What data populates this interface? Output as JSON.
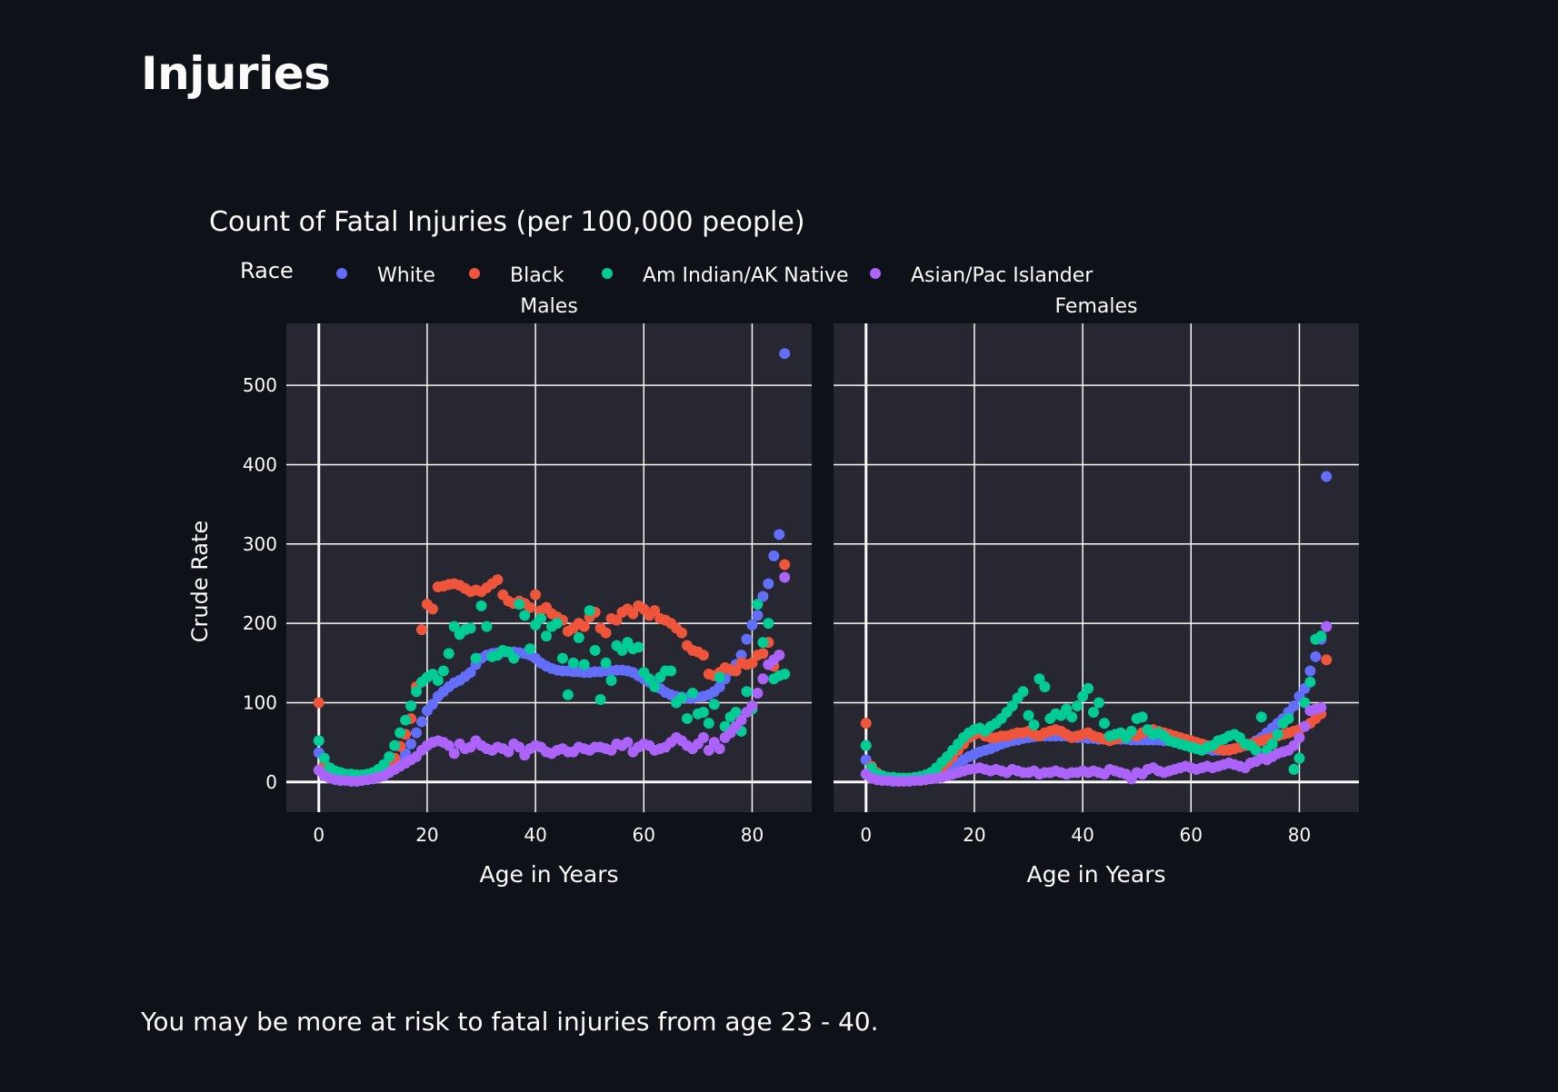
{
  "page": {
    "title": "Injuries",
    "caption": "You may be more at risk to fatal injuries from age 23 - 40."
  },
  "colors": {
    "background": "#0e1117",
    "plot_bg": "#262730",
    "grid": "#fafafa",
    "text": "#fafafa"
  },
  "chart_data": {
    "type": "scatter",
    "title": "Count of Fatal Injuries (per 100,000 people)",
    "legend_title": "Race",
    "legend_position": "top",
    "ylabel": "Crude Rate",
    "xlabel": "Age in Years",
    "xlim": [
      -6,
      91
    ],
    "ylim": [
      -38,
      578
    ],
    "xticks": [
      0,
      20,
      40,
      60,
      80
    ],
    "yticks": [
      0,
      100,
      200,
      300,
      400,
      500
    ],
    "grid": true,
    "series_info": [
      {
        "name": "White",
        "color": "#636efa"
      },
      {
        "name": "Black",
        "color": "#ef553b"
      },
      {
        "name": "Am Indian/AK Native",
        "color": "#00cc96"
      },
      {
        "name": "Asian/Pac Islander",
        "color": "#ab63fa"
      }
    ],
    "panels": [
      {
        "title": "Males",
        "series": [
          {
            "name": "White",
            "values": [
              37,
              12,
              8,
              6,
              5,
              4,
              4,
              3,
              3,
              4,
              5,
              6,
              8,
              12,
              18,
              26,
              36,
              48,
              62,
              76,
              90,
              98,
              108,
              114,
              120,
              125,
              128,
              133,
              138,
              148,
              156,
              160,
              162,
              163,
              164,
              164,
              164,
              163,
              162,
              160,
              156,
              150,
              146,
              143,
              141,
              140,
              140,
              139,
              139,
              138,
              138,
              139,
              139,
              140,
              140,
              141,
              141,
              140,
              138,
              134,
              130,
              126,
              122,
              118,
              113,
              110,
              108,
              107,
              106,
              106,
              107,
              108,
              110,
              114,
              120,
              130,
              140,
              148,
              160,
              180,
              198,
              210,
              234,
              250,
              285,
              312,
              540
            ]
          },
          {
            "name": "Black",
            "values": [
              100,
              22,
              14,
              12,
              10,
              9,
              8,
              7,
              7,
              8,
              9,
              11,
              14,
              20,
              30,
              45,
              60,
              80,
              120,
              192,
              224,
              218,
              246,
              247,
              249,
              250,
              248,
              244,
              240,
              242,
              240,
              245,
              250,
              255,
              236,
              228,
              225,
              228,
              225,
              220,
              236,
              216,
              220,
              212,
              208,
              204,
              190,
              194,
              200,
              196,
              208,
              214,
              194,
              188,
              206,
              204,
              214,
              218,
              212,
              222,
              218,
              210,
              216,
              206,
              204,
              200,
              194,
              188,
              172,
              166,
              164,
              160,
              136,
              134,
              138,
              144,
              142,
              140,
              150,
              148,
              150,
              160,
              162,
              176,
              146,
              160,
              274
            ]
          },
          {
            "name": "Am Indian/AK Native",
            "values": [
              52,
              30,
              18,
              14,
              12,
              10,
              10,
              9,
              9,
              10,
              12,
              16,
              22,
              32,
              46,
              62,
              78,
              96,
              114,
              126,
              132,
              136,
              128,
              140,
              162,
              196,
              186,
              192,
              194,
              156,
              222,
              196,
              158,
              160,
              166,
              164,
              156,
              224,
              210,
              168,
              198,
              206,
              184,
              196,
              200,
              156,
              110,
              150,
              182,
              148,
              216,
              166,
              104,
              150,
              128,
              172,
              166,
              176,
              168,
              170,
              138,
              130,
              120,
              132,
              140,
              140,
              100,
              106,
              80,
              112,
              86,
              88,
              74,
              98,
              132,
              70,
              82,
              88,
              64,
              114,
              92,
              224,
              176,
              200,
              130,
              134,
              136
            ]
          },
          {
            "name": "Asian/Pac Islander",
            "values": [
              15,
              8,
              5,
              3,
              2,
              2,
              1,
              1,
              2,
              3,
              4,
              6,
              8,
              12,
              16,
              20,
              24,
              28,
              32,
              40,
              46,
              50,
              52,
              50,
              46,
              36,
              48,
              42,
              44,
              52,
              46,
              42,
              40,
              44,
              42,
              38,
              48,
              44,
              34,
              42,
              46,
              44,
              38,
              36,
              40,
              42,
              38,
              38,
              44,
              42,
              40,
              44,
              44,
              42,
              40,
              48,
              46,
              50,
              38,
              44,
              48,
              46,
              40,
              42,
              44,
              50,
              56,
              52,
              46,
              42,
              48,
              56,
              40,
              50,
              42,
              56,
              62,
              70,
              78,
              88,
              96,
              112,
              130,
              148,
              154,
              160,
              258
            ]
          }
        ]
      },
      {
        "title": "Females",
        "series": [
          {
            "name": "White",
            "values": [
              28,
              10,
              6,
              4,
              3,
              3,
              2,
              2,
              2,
              3,
              3,
              4,
              6,
              9,
              13,
              17,
              20,
              24,
              28,
              32,
              35,
              38,
              40,
              42,
              45,
              48,
              50,
              52,
              53,
              55,
              56,
              57,
              58,
              58,
              58,
              58,
              58,
              58,
              57,
              56,
              56,
              55,
              55,
              54,
              54,
              54,
              54,
              54,
              54,
              53,
              53,
              53,
              53,
              53,
              53,
              52,
              52,
              51,
              50,
              49,
              48,
              46,
              44,
              42,
              40,
              40,
              40,
              41,
              42,
              44,
              46,
              48,
              52,
              56,
              62,
              68,
              74,
              80,
              88,
              96,
              108,
              118,
              140,
              158,
              180,
              385
            ]
          },
          {
            "name": "Black",
            "values": [
              74,
              20,
              12,
              8,
              6,
              5,
              4,
              4,
              4,
              4,
              5,
              6,
              8,
              12,
              18,
              25,
              32,
              40,
              48,
              56,
              60,
              62,
              58,
              56,
              56,
              58,
              58,
              60,
              62,
              62,
              64,
              60,
              58,
              62,
              64,
              66,
              64,
              60,
              56,
              58,
              60,
              62,
              58,
              56,
              54,
              52,
              54,
              56,
              58,
              60,
              58,
              62,
              64,
              66,
              64,
              62,
              60,
              58,
              56,
              54,
              52,
              50,
              48,
              46,
              44,
              42,
              40,
              40,
              42,
              44,
              46,
              48,
              50,
              52,
              54,
              56,
              58,
              60,
              62,
              64,
              66,
              70,
              74,
              80,
              86,
              154
            ]
          },
          {
            "name": "Am Indian/AK Native",
            "values": [
              46,
              18,
              10,
              8,
              6,
              6,
              5,
              5,
              5,
              6,
              7,
              9,
              12,
              18,
              25,
              32,
              40,
              48,
              56,
              62,
              66,
              68,
              64,
              70,
              74,
              80,
              88,
              96,
              106,
              114,
              84,
              72,
              130,
              120,
              80,
              86,
              84,
              92,
              82,
              96,
              108,
              118,
              88,
              100,
              74,
              58,
              60,
              62,
              56,
              64,
              80,
              82,
              66,
              60,
              62,
              58,
              52,
              50,
              48,
              46,
              44,
              42,
              40,
              44,
              46,
              52,
              54,
              58,
              60,
              56,
              48,
              46,
              40,
              82,
              40,
              48,
              60,
              74,
              80,
              16,
              30,
              100,
              126,
              180,
              184
            ]
          },
          {
            "name": "Asian/Pac Islander",
            "values": [
              10,
              5,
              3,
              2,
              2,
              1,
              1,
              1,
              1,
              2,
              2,
              3,
              4,
              5,
              6,
              8,
              10,
              12,
              14,
              16,
              17,
              18,
              16,
              14,
              16,
              14,
              12,
              16,
              14,
              12,
              12,
              14,
              10,
              12,
              12,
              14,
              12,
              10,
              12,
              12,
              14,
              12,
              14,
              12,
              10,
              16,
              14,
              12,
              10,
              4,
              12,
              10,
              16,
              18,
              14,
              12,
              14,
              16,
              18,
              20,
              18,
              16,
              18,
              20,
              18,
              20,
              22,
              24,
              22,
              20,
              18,
              24,
              26,
              30,
              28,
              32,
              36,
              38,
              40,
              46,
              56,
              70,
              90,
              92,
              94,
              196
            ]
          }
        ]
      }
    ]
  }
}
